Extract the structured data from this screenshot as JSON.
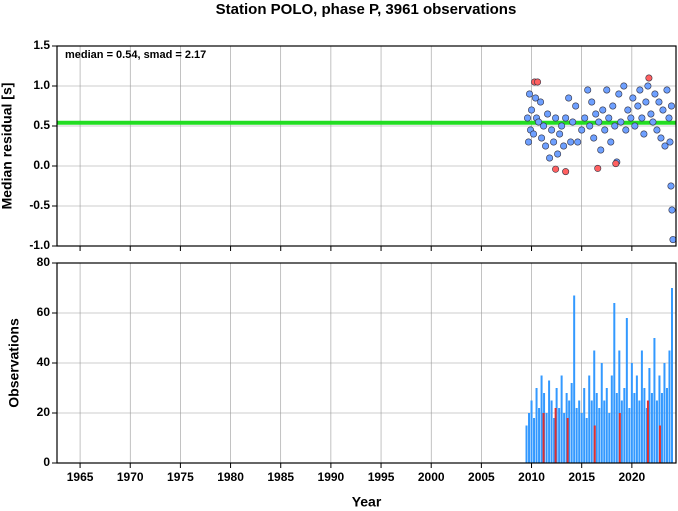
{
  "chart_data": [
    {
      "type": "scatter",
      "title": "Station POLO, phase P, 3961 observations",
      "ylabel": "Median residual [s]",
      "annotation": "median = 0.54, smad = 2.17",
      "median_line": 0.54,
      "median_color": "#22dd22",
      "xlim": [
        1962.7,
        2024.4
      ],
      "xticks": [
        1965,
        1970,
        1975,
        1980,
        1985,
        1990,
        1995,
        2000,
        2005,
        2010,
        2015,
        2020
      ],
      "ylim": [
        -1.0,
        1.5
      ],
      "yticks": [
        1.5,
        {
          "value": 1.0,
          "label": "1.0"
        },
        0.5,
        {
          "value": 0.0,
          "label": "0.0"
        },
        -0.5,
        {
          "value": -1.0,
          "label": "-1.0"
        }
      ],
      "grid": true,
      "series": [
        {
          "color": "#6ea0ff",
          "x": [
            2009.6,
            2009.7,
            2009.8,
            2009.9,
            2010.0,
            2010.2,
            2010.4,
            2010.5,
            2010.7,
            2010.9,
            2011.0,
            2011.2,
            2011.4,
            2011.6,
            2011.8,
            2012.0,
            2012.2,
            2012.4,
            2012.6,
            2012.8,
            2013.0,
            2013.2,
            2013.4,
            2013.7,
            2013.9,
            2014.1,
            2014.4,
            2014.6,
            2015.0,
            2015.3,
            2015.6,
            2015.8,
            2016.0,
            2016.2,
            2016.4,
            2016.7,
            2016.9,
            2017.1,
            2017.3,
            2017.5,
            2017.7,
            2017.9,
            2018.1,
            2018.3,
            2018.5,
            2018.7,
            2018.9,
            2019.2,
            2019.4,
            2019.6,
            2019.9,
            2020.1,
            2020.3,
            2020.6,
            2020.8,
            2021.0,
            2021.2,
            2021.4,
            2021.6,
            2021.9,
            2022.1,
            2022.3,
            2022.5,
            2022.7,
            2022.9,
            2023.1,
            2023.3,
            2023.5,
            2023.7,
            2023.8,
            2023.9,
            2024.0,
            2024.1,
            2023.95
          ],
          "values": [
            0.6,
            0.3,
            0.9,
            0.45,
            0.7,
            0.4,
            0.85,
            0.6,
            0.55,
            0.8,
            0.35,
            0.5,
            0.25,
            0.65,
            0.1,
            0.45,
            0.3,
            0.6,
            0.15,
            0.4,
            0.5,
            0.25,
            0.6,
            0.85,
            0.3,
            0.55,
            0.75,
            0.3,
            0.45,
            0.6,
            0.95,
            0.5,
            0.8,
            0.35,
            0.65,
            0.55,
            0.2,
            0.7,
            0.45,
            0.95,
            0.6,
            0.3,
            0.75,
            0.5,
            0.05,
            0.9,
            0.55,
            1.0,
            0.45,
            0.7,
            0.6,
            0.85,
            0.5,
            0.75,
            0.95,
            0.6,
            0.4,
            0.8,
            1.0,
            0.65,
            0.55,
            0.9,
            0.45,
            0.8,
            0.35,
            0.7,
            0.25,
            0.95,
            0.6,
            0.3,
            -0.25,
            -0.55,
            -0.92,
            0.75
          ]
        },
        {
          "color": "#ff6060",
          "x": [
            2010.3,
            2010.6,
            2012.4,
            2013.4,
            2016.6,
            2018.4,
            2021.7
          ],
          "values": [
            1.05,
            1.05,
            -0.04,
            -0.07,
            -0.03,
            0.03,
            1.1
          ]
        }
      ]
    },
    {
      "type": "bar",
      "xlabel": "Year",
      "ylabel": "Observations",
      "xlim": [
        1962.7,
        2024.4
      ],
      "xticks": [
        1965,
        1970,
        1975,
        1980,
        1985,
        1990,
        1995,
        2000,
        2005,
        2010,
        2015,
        2020
      ],
      "ylim": [
        0,
        80
      ],
      "yticks": [
        0,
        20,
        40,
        60,
        80
      ],
      "grid": true,
      "series": [
        {
          "color": "#3399ff",
          "x": [
            2009.5,
            2009.75,
            2010.0,
            2010.25,
            2010.5,
            2010.75,
            2011.0,
            2011.25,
            2011.5,
            2011.75,
            2012.0,
            2012.25,
            2012.5,
            2012.75,
            2013.0,
            2013.25,
            2013.5,
            2013.75,
            2014.0,
            2014.25,
            2014.5,
            2014.75,
            2015.0,
            2015.25,
            2015.5,
            2015.75,
            2016.0,
            2016.25,
            2016.5,
            2016.75,
            2017.0,
            2017.25,
            2017.5,
            2017.75,
            2018.0,
            2018.25,
            2018.5,
            2018.75,
            2019.0,
            2019.25,
            2019.5,
            2019.75,
            2020.0,
            2020.25,
            2020.5,
            2020.75,
            2021.0,
            2021.25,
            2021.5,
            2021.75,
            2022.0,
            2022.25,
            2022.5,
            2022.75,
            2023.0,
            2023.25,
            2023.5,
            2023.75,
            2024.0
          ],
          "values": [
            15,
            20,
            25,
            18,
            30,
            22,
            35,
            28,
            20,
            33,
            25,
            18,
            30,
            22,
            35,
            20,
            28,
            25,
            32,
            67,
            22,
            25,
            20,
            30,
            18,
            35,
            25,
            45,
            28,
            22,
            40,
            25,
            30,
            20,
            35,
            64,
            28,
            45,
            25,
            30,
            58,
            22,
            40,
            28,
            35,
            25,
            45,
            30,
            22,
            38,
            28,
            50,
            25,
            35,
            28,
            40,
            30,
            45,
            70
          ]
        },
        {
          "color": "#e03030",
          "x": [
            2011.2,
            2012.4,
            2013.6,
            2016.3,
            2018.8,
            2021.6,
            2022.8
          ],
          "values": [
            20,
            22,
            18,
            15,
            20,
            25,
            15
          ]
        }
      ]
    }
  ]
}
